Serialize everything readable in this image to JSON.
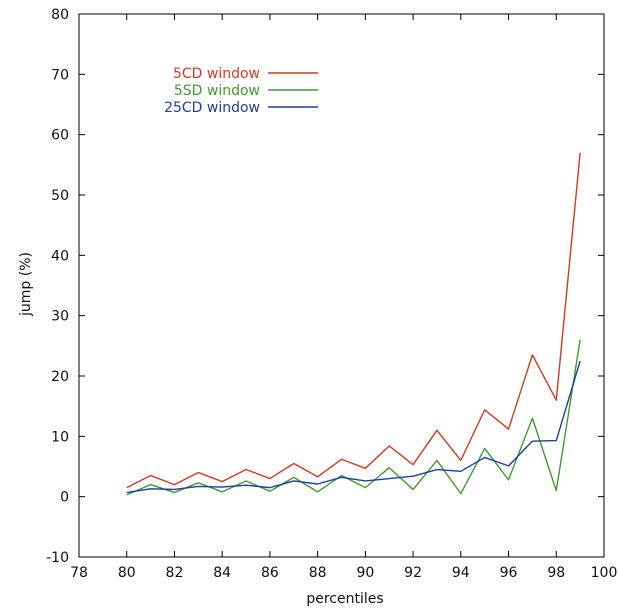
{
  "chart_data": {
    "type": "line",
    "xlabel": "percentiles",
    "ylabel": "jump (%)",
    "xlim": [
      78,
      100
    ],
    "ylim": [
      -10,
      80
    ],
    "xticks": [
      78,
      80,
      82,
      84,
      86,
      88,
      90,
      92,
      94,
      96,
      98,
      100
    ],
    "yticks": [
      -10,
      0,
      10,
      20,
      30,
      40,
      50,
      60,
      70,
      80
    ],
    "grid": false,
    "legend_position": "top-left",
    "x": [
      80,
      81,
      82,
      83,
      84,
      85,
      86,
      87,
      88,
      89,
      90,
      91,
      92,
      93,
      94,
      95,
      96,
      97,
      98,
      99
    ],
    "series": [
      {
        "name": "5CD window",
        "color": "#d23a1e",
        "values": [
          1.5,
          3.5,
          2.0,
          4.0,
          2.5,
          4.5,
          3.0,
          5.5,
          3.3,
          6.2,
          4.7,
          8.4,
          5.3,
          11.0,
          6.0,
          14.4,
          11.2,
          23.5,
          16.0,
          57.0
        ]
      },
      {
        "name": "5SD window",
        "color": "#3e9b2e",
        "values": [
          0.3,
          2.0,
          0.7,
          2.3,
          0.8,
          2.6,
          0.9,
          3.2,
          0.8,
          3.5,
          1.5,
          4.8,
          1.2,
          6.0,
          0.5,
          8.0,
          2.8,
          13.0,
          1.0,
          26.0
        ]
      },
      {
        "name": "25CD window",
        "color": "#1f3ea0",
        "values": [
          0.7,
          1.3,
          1.2,
          1.7,
          1.6,
          1.9,
          1.5,
          2.6,
          2.1,
          3.2,
          2.6,
          3.0,
          3.4,
          4.5,
          4.2,
          6.5,
          5.1,
          9.2,
          9.3,
          22.5
        ]
      }
    ]
  }
}
